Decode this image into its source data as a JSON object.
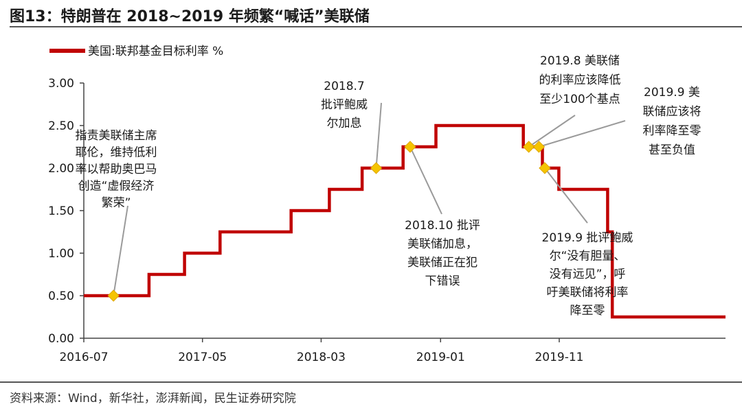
{
  "header": {
    "title": "图13：特朗普在 2018~2019 年频繁“喊话”美联储"
  },
  "footer": {
    "source": "资料来源：Wind，新华社，澎湃新闻，民生证券研究院"
  },
  "colors": {
    "line": "#c00000",
    "marker": "#f5c400",
    "text": "#1a1a1a",
    "rule": "#555555",
    "leader": "#9a9a9a"
  },
  "chart_data": {
    "type": "line",
    "series": [
      {
        "name": "美国:联邦基金目标利率  %",
        "step": true,
        "points": [
          [
            "2016-07-01",
            0.5
          ],
          [
            "2016-12-15",
            0.75
          ],
          [
            "2017-03-16",
            1.0
          ],
          [
            "2017-06-15",
            1.25
          ],
          [
            "2017-12-14",
            1.5
          ],
          [
            "2018-03-22",
            1.75
          ],
          [
            "2018-06-14",
            2.0
          ],
          [
            "2018-09-27",
            2.25
          ],
          [
            "2018-12-20",
            2.5
          ],
          [
            "2019-08-01",
            2.25
          ],
          [
            "2019-09-19",
            2.0
          ],
          [
            "2019-10-31",
            1.75
          ],
          [
            "2020-03-04",
            1.25
          ],
          [
            "2020-03-16",
            0.25
          ],
          [
            "2020-12-31",
            0.25
          ]
        ]
      }
    ],
    "xlim": [
      "2016-07-01",
      "2020-12-31"
    ],
    "ylim": [
      0,
      3
    ],
    "x_ticks": [
      {
        "date": "2016-07-01",
        "label": "2016-07"
      },
      {
        "date": "2017-05-01",
        "label": "2017-05"
      },
      {
        "date": "2018-03-01",
        "label": "2018-03"
      },
      {
        "date": "2019-01-01",
        "label": "2019-01"
      },
      {
        "date": "2019-11-01",
        "label": "2019-11"
      }
    ],
    "y_ticks": [
      {
        "value": 0.0,
        "label": "0.00"
      },
      {
        "value": 0.5,
        "label": "0.50"
      },
      {
        "value": 1.0,
        "label": "1.00"
      },
      {
        "value": 1.5,
        "label": "1.50"
      },
      {
        "value": 2.0,
        "label": "2.00"
      },
      {
        "value": 2.5,
        "label": "2.50"
      },
      {
        "value": 3.0,
        "label": "3.00"
      }
    ],
    "grid": false,
    "legend": "top-left",
    "annotations": [
      {
        "date": "2016-09-15",
        "value": 0.5,
        "lines": [
          "指责美联储主席",
          "耶伦，维持低利",
          "率以帮助奥巴马",
          "创造“虚假经济",
          "繁荣”"
        ]
      },
      {
        "date": "2018-07-20",
        "value": 2.0,
        "lines": [
          "2018.7",
          "批评鲍威",
          "尔加息"
        ]
      },
      {
        "date": "2018-10-15",
        "value": 2.25,
        "lines": [
          "2018.10 批评",
          "美联储加息，",
          "美联储正在犯",
          "下错误"
        ]
      },
      {
        "date": "2019-08-15",
        "value": 2.25,
        "lines": [
          "2019.8 美联储",
          "的利率应该降低",
          "至少100个基点"
        ]
      },
      {
        "date": "2019-09-10",
        "value": 2.25,
        "lines": [
          "2019.9 美",
          "联储应该将",
          "利率降至零",
          "甚至负值"
        ]
      },
      {
        "date": "2019-09-25",
        "value": 2.0,
        "lines": [
          "2019.9 批评鲍威",
          "尔“没有胆量、",
          "没有远见”，呼",
          "吁美联储将利率",
          "降至零"
        ]
      }
    ]
  }
}
